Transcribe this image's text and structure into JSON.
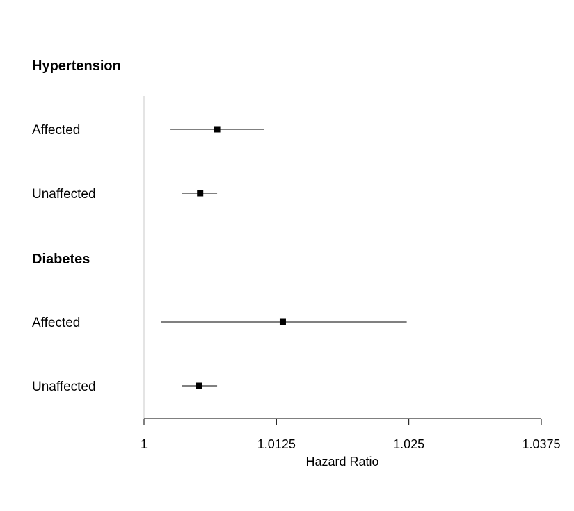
{
  "chart_data": {
    "type": "forest",
    "xlabel": "Hazard Ratio",
    "xlim": [
      1,
      1.0375
    ],
    "xticks": [
      "1",
      "1.0125",
      "1.025",
      "1.0375"
    ],
    "reference_line": 1,
    "groups": [
      {
        "title": "Hypertension",
        "rows": [
          {
            "label": "Affected",
            "estimate": 1.0069,
            "lower": 1.0025,
            "upper": 1.0113
          },
          {
            "label": "Unaffected",
            "estimate": 1.0053,
            "lower": 1.0036,
            "upper": 1.0069
          }
        ]
      },
      {
        "title": "Diabetes",
        "rows": [
          {
            "label": "Affected",
            "estimate": 1.0131,
            "lower": 1.0016,
            "upper": 1.0248
          },
          {
            "label": "Unaffected",
            "estimate": 1.0052,
            "lower": 1.0036,
            "upper": 1.0069
          }
        ]
      }
    ],
    "colors": {
      "marker": "#000000",
      "reference_line": "#c8c8c8",
      "axis": "#000000"
    }
  }
}
